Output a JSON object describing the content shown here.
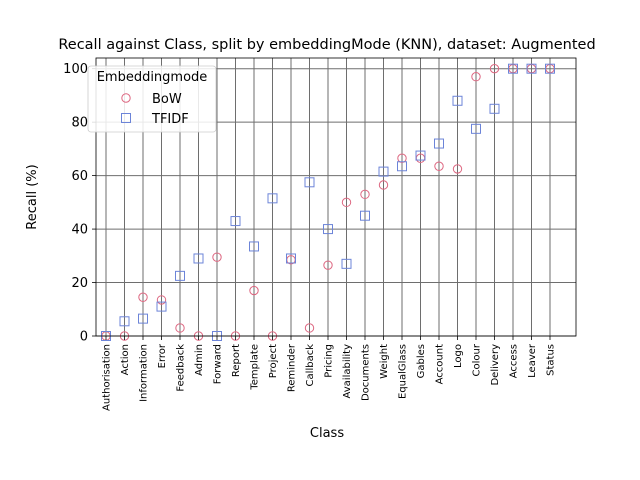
{
  "chart_data": {
    "type": "scatter",
    "title": "Recall against Class, split by embeddingMode (KNN), dataset: Augmented",
    "xlabel": "Class",
    "ylabel": "Recall (%)",
    "ylim": [
      0,
      104
    ],
    "yticks": [
      0,
      20,
      40,
      60,
      80,
      100
    ],
    "grid": true,
    "legend_title": "Embeddingmode",
    "legend_position": "upper-left",
    "categories": [
      "Authorisation",
      "Action",
      "Information",
      "Error",
      "Feedback",
      "Admin",
      "Forward",
      "Report",
      "Template",
      "Project",
      "Reminder",
      "Callback",
      "Pricing",
      "Availability",
      "Documents",
      "Weight",
      "EqualGlass",
      "Gables",
      "Account",
      "Logo",
      "Colour",
      "Delivery",
      "Access",
      "Leaver",
      "Status"
    ],
    "series": [
      {
        "name": "BoW",
        "marker": "circle",
        "color": "#dd6680",
        "values": [
          0,
          0,
          14.5,
          13.5,
          3,
          0,
          29.5,
          0,
          17,
          0,
          28.5,
          3,
          26.5,
          50,
          53,
          56.5,
          66.5,
          66.5,
          63.5,
          62.5,
          97,
          100,
          100,
          100,
          100
        ]
      },
      {
        "name": "TFIDF",
        "marker": "square",
        "color": "#6c84d8",
        "values": [
          0,
          5.5,
          6.5,
          11,
          22.5,
          29,
          0,
          43,
          33.5,
          51.5,
          29,
          57.5,
          40,
          27,
          45,
          61.5,
          63.5,
          67.5,
          72,
          88,
          77.5,
          85,
          100,
          100,
          100
        ]
      }
    ]
  }
}
